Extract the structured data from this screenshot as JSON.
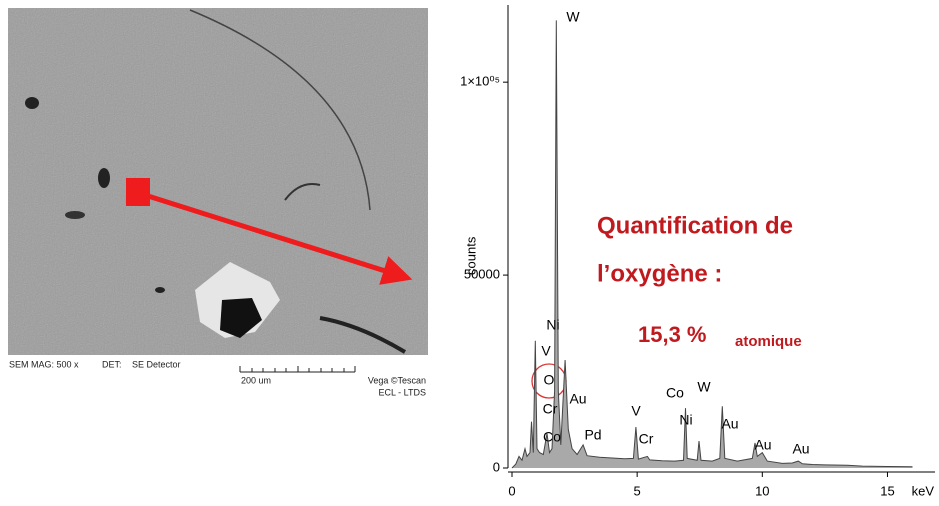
{
  "image": {
    "footer": {
      "mag": "SEM MAG: 500 x",
      "det_label": "DET:",
      "detector": "SE Detector",
      "scale": "200 um",
      "brand": "Vega ©Tescan",
      "lab": "ECL - LTDS"
    }
  },
  "quantification": {
    "lines": [
      "Quantification de",
      "l’oxygène :"
    ],
    "value": "15,3 %",
    "unit": "atomique"
  },
  "chart_data": {
    "type": "area",
    "y_label": "counts",
    "x_label": "keV",
    "color": "#a9a9a9",
    "line_color": "#444444",
    "x": [
      0,
      0.15,
      0.28,
      0.4,
      0.52,
      0.6,
      0.72,
      0.78,
      0.85,
      0.93,
      1.0,
      1.1,
      1.25,
      1.4,
      1.5,
      1.6,
      1.7,
      1.77,
      1.85,
      1.95,
      2.12,
      2.25,
      2.4,
      2.6,
      2.84,
      3.0,
      3.5,
      4.0,
      4.5,
      4.85,
      4.95,
      5.05,
      5.41,
      5.5,
      6.0,
      6.5,
      6.85,
      6.93,
      7.0,
      7.4,
      7.47,
      7.55,
      8.0,
      8.3,
      8.4,
      8.5,
      9.0,
      9.6,
      9.71,
      9.8,
      10.0,
      10.2,
      10.8,
      11.2,
      11.44,
      11.6,
      12.0,
      12.5,
      13.4,
      14,
      15,
      16
    ],
    "values": [
      0,
      1000,
      3000,
      2000,
      5000,
      3000,
      4000,
      12000,
      4000,
      33000,
      5000,
      4000,
      3500,
      9000,
      4000,
      5000,
      20000,
      116000,
      20000,
      6000,
      28000,
      10000,
      5000,
      3500,
      6000,
      3200,
      2800,
      2600,
      2400,
      2500,
      10600,
      2300,
      3000,
      2100,
      1900,
      1800,
      2000,
      15500,
      2500,
      2000,
      7000,
      2000,
      1800,
      2500,
      16000,
      2500,
      1800,
      2500,
      6500,
      3000,
      4000,
      1800,
      1200,
      1300,
      1800,
      1100,
      900,
      800,
      700,
      500,
      400,
      300
    ],
    "xlim": [
      0,
      16.5
    ],
    "xticks": [
      0,
      5,
      10,
      15
    ],
    "ylim": [
      0,
      120000
    ],
    "yticks": [
      0,
      50000,
      {
        "value": 100000,
        "label": "1×10⁰⁵"
      }
    ],
    "annotations": [
      "W",
      "Ni",
      "V",
      "O",
      "Cr",
      "Co",
      "Au",
      "Pd",
      "V",
      "Cr",
      "Co",
      "Ni",
      "W",
      "Au",
      "Au",
      "Au"
    ]
  }
}
